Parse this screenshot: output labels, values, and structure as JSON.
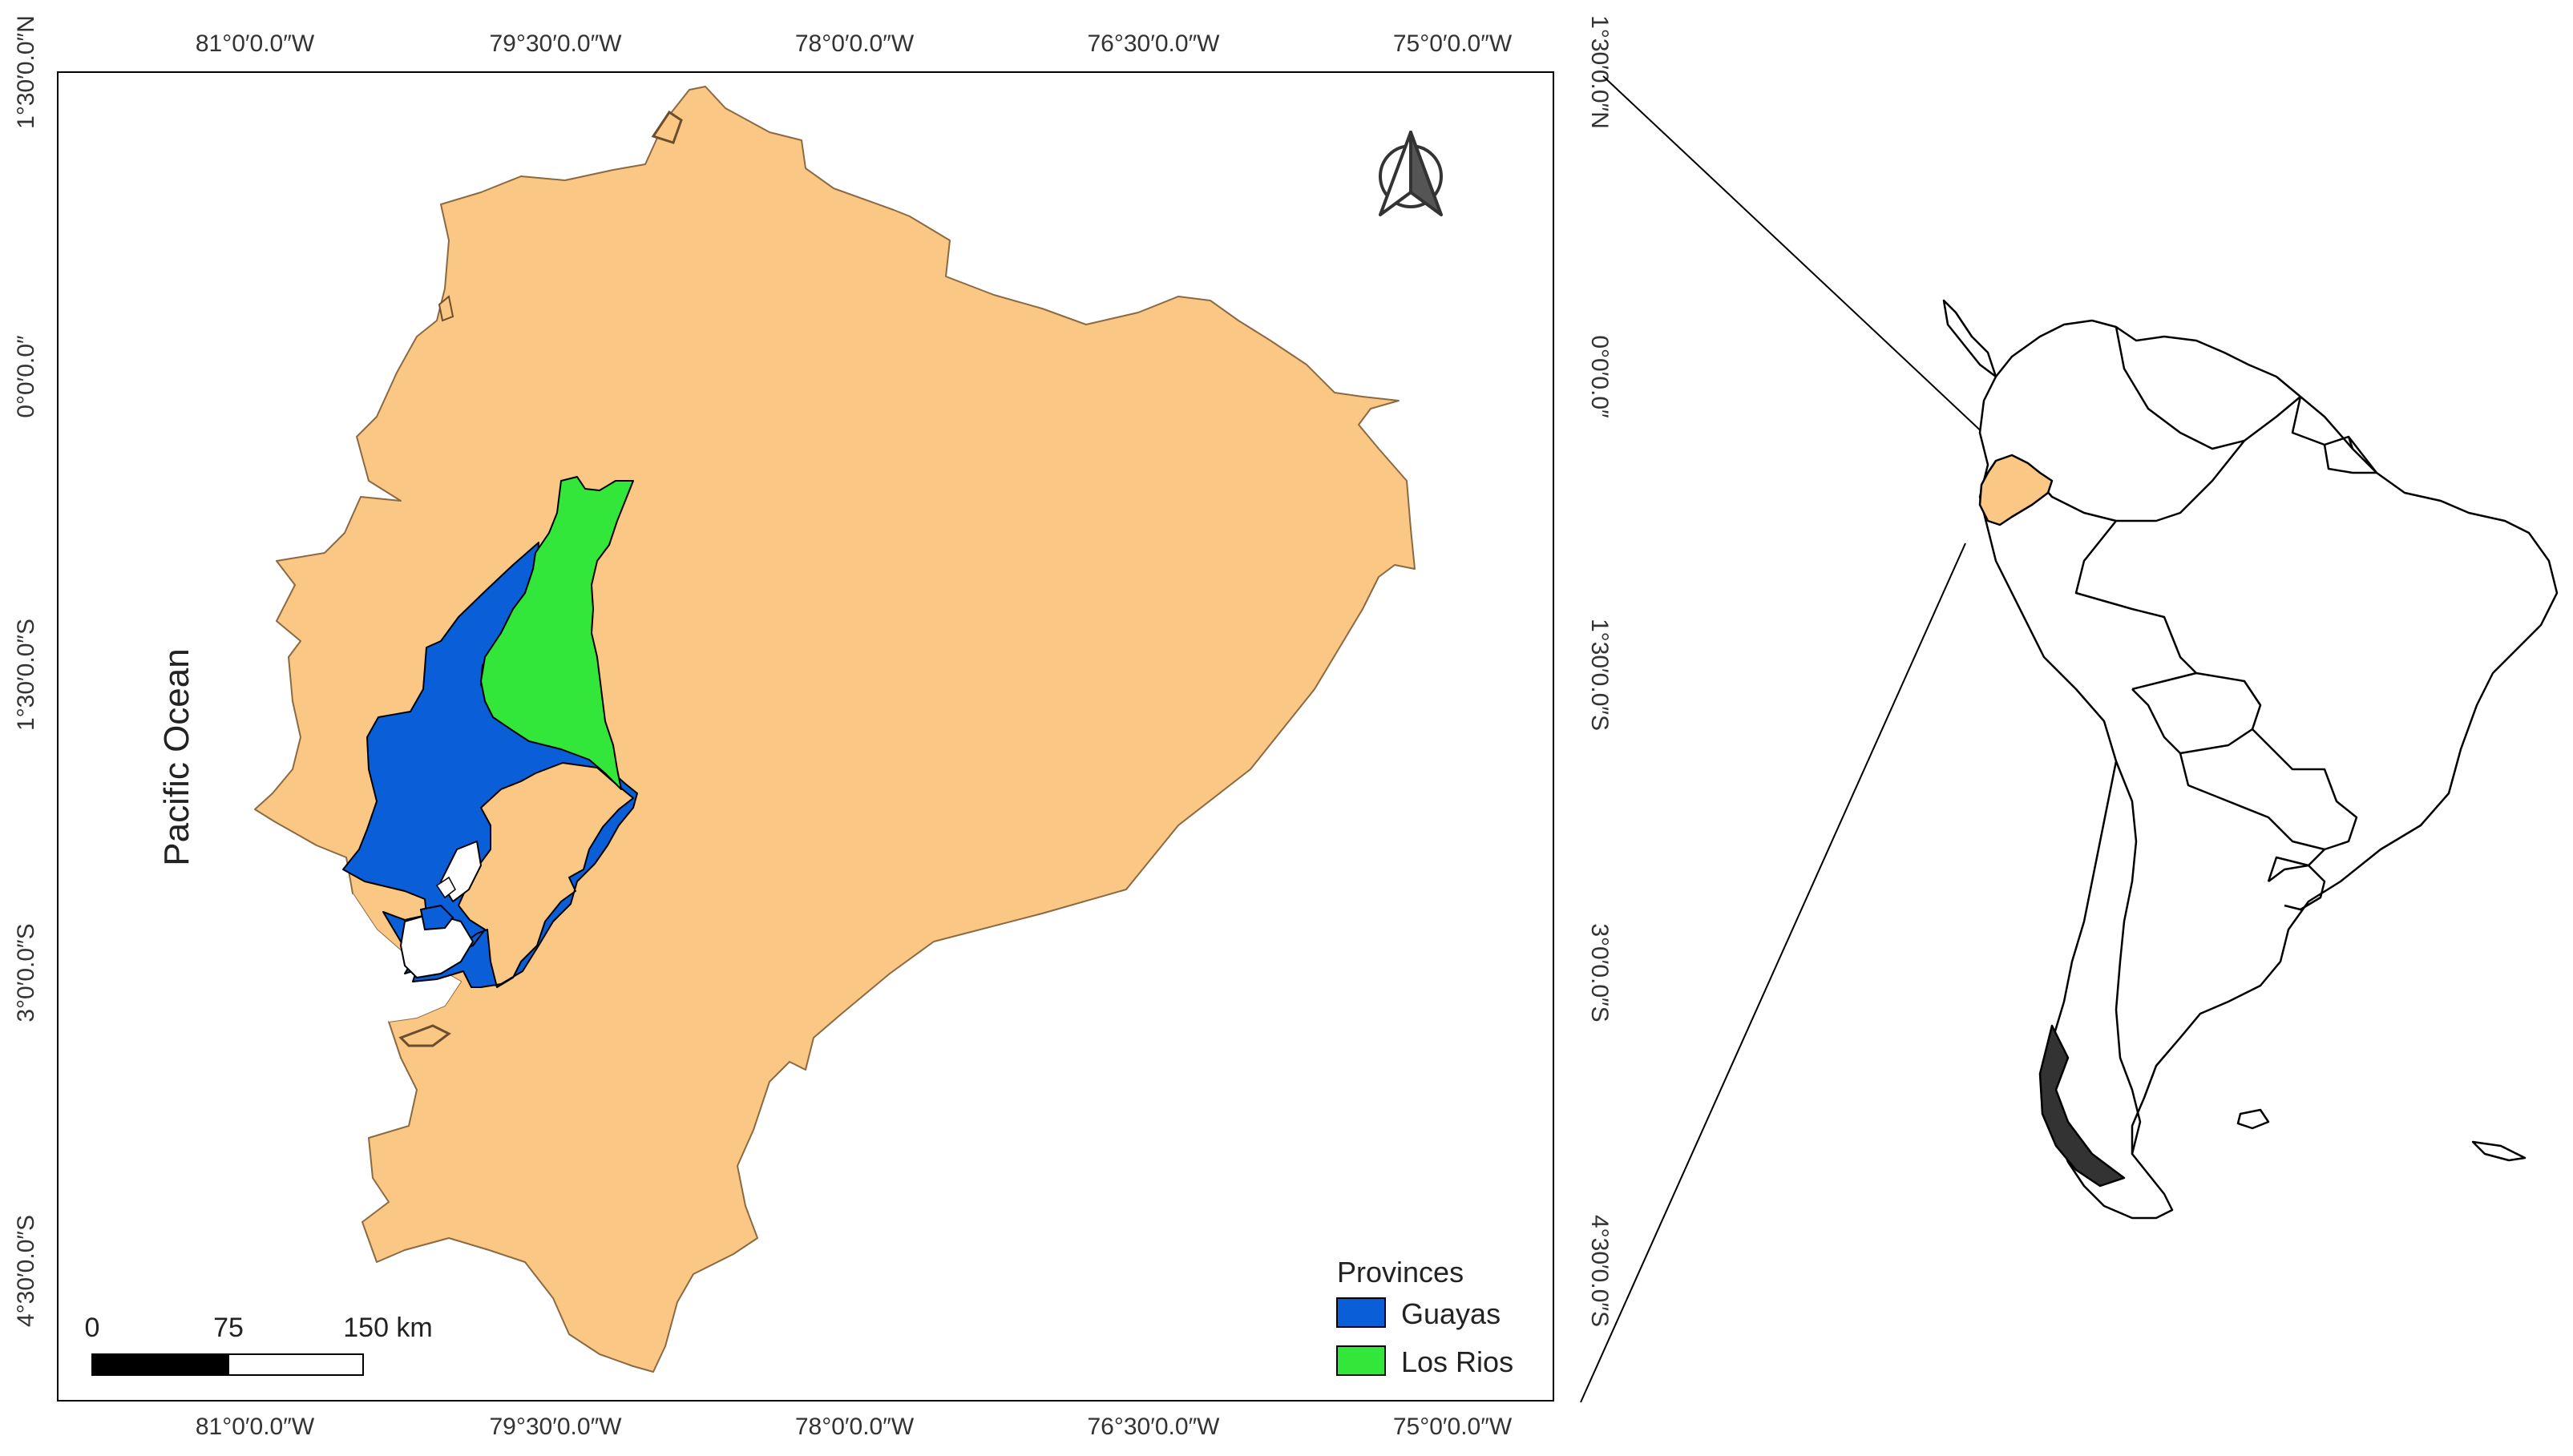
{
  "main_map": {
    "ocean_label": "Pacific Ocean",
    "top_ticks": [
      "81°0′0.0″W",
      "79°30′0.0″W",
      "78°0′0.0″W",
      "76°30′0.0″W",
      "75°0′0.0″W"
    ],
    "bottom_ticks": [
      "81°0′0.0″W",
      "79°30′0.0″W",
      "78°0′0.0″W",
      "76°30′0.0″W",
      "75°0′0.0″W"
    ],
    "left_ticks": [
      "1°30′0.0″N",
      "0°0′0.0″",
      "1°30′0.0″S",
      "3°0′0.0″S",
      "4°30′0.0″S"
    ],
    "right_ticks": [
      "1°30′0.0″N",
      "0°0′0.0″",
      "1°30′0.0″S",
      "3°0′0.0″S",
      "4°30′0.0″S"
    ]
  },
  "legend": {
    "title": "Provinces",
    "items": [
      {
        "label": "Guayas",
        "color": "#0a5ed8"
      },
      {
        "label": "Los Rios",
        "color": "#33e63a"
      }
    ]
  },
  "scale_bar": {
    "labels": [
      "0",
      "75",
      "150 km"
    ]
  },
  "colors": {
    "ecuador": "#fbc784",
    "guayas": "#0a5ed8",
    "los_rios": "#33e63a",
    "outline": "#000000"
  }
}
